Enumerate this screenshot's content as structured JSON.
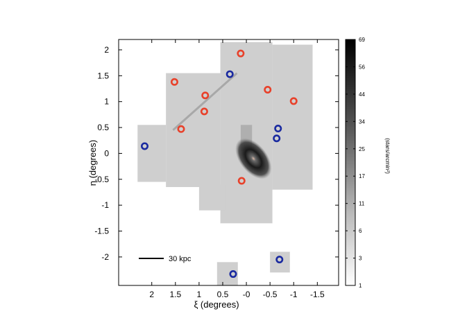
{
  "chart_data": {
    "type": "heatmap",
    "title": "",
    "xlabel": "ξ (degrees)",
    "ylabel": "η (degrees)",
    "xlim": [
      2.7,
      -1.95
    ],
    "ylim": [
      -2.55,
      2.2
    ],
    "x_axis_reversed": true,
    "x_ticks": [
      {
        "value": 2,
        "label": "2"
      },
      {
        "value": 1.5,
        "label": "1.5"
      },
      {
        "value": 1,
        "label": "1"
      },
      {
        "value": 0.5,
        "label": "0.5"
      },
      {
        "value": 0,
        "label": "-0"
      },
      {
        "value": -0.5,
        "label": "-0.5"
      },
      {
        "value": -1,
        "label": "-1"
      },
      {
        "value": -1.5,
        "label": "-1.5"
      }
    ],
    "y_ticks": [
      {
        "value": 2,
        "label": "2"
      },
      {
        "value": 1.5,
        "label": "1.5"
      },
      {
        "value": 1,
        "label": "1"
      },
      {
        "value": 0.5,
        "label": "0.5"
      },
      {
        "value": 0,
        "label": "0"
      },
      {
        "value": -0.5,
        "label": "-0.5"
      },
      {
        "value": -1,
        "label": "-1"
      },
      {
        "value": -1.5,
        "label": "-1.5"
      },
      {
        "value": -2,
        "label": "-2"
      }
    ],
    "colorbar": {
      "title": "(stars/arcmin²)",
      "tick_labels": [
        "69",
        "56",
        "44",
        "34",
        "25",
        "17",
        "11",
        "6",
        "3",
        "1"
      ],
      "colors": [
        "#000000",
        "#ffffff"
      ]
    },
    "scale_bar": {
      "label": "30 kpc"
    },
    "marker_colors": {
      "red": "#e8412a",
      "blue": "#1a2aa0"
    },
    "markers": [
      {
        "color": "red",
        "x": 0.12,
        "y": 1.93
      },
      {
        "color": "red",
        "x": 1.52,
        "y": 1.38
      },
      {
        "color": "red",
        "x": 0.87,
        "y": 1.12
      },
      {
        "color": "red",
        "x": -0.45,
        "y": 1.23
      },
      {
        "color": "red",
        "x": -1.0,
        "y": 1.01
      },
      {
        "color": "red",
        "x": 0.89,
        "y": 0.81
      },
      {
        "color": "red",
        "x": 1.38,
        "y": 0.47
      },
      {
        "color": "red",
        "x": 0.1,
        "y": -0.53
      },
      {
        "color": "blue",
        "x": 0.35,
        "y": 1.53
      },
      {
        "color": "blue",
        "x": -0.67,
        "y": 0.48
      },
      {
        "color": "blue",
        "x": -0.64,
        "y": 0.29
      },
      {
        "color": "blue",
        "x": 2.15,
        "y": 0.14
      },
      {
        "color": "blue",
        "x": -0.7,
        "y": -2.05
      },
      {
        "color": "blue",
        "x": 0.28,
        "y": -2.33
      }
    ],
    "survey_fields": [
      {
        "x0": 1.7,
        "x1": 0.55,
        "y0": -0.65,
        "y1": 1.55
      },
      {
        "x0": 0.55,
        "x1": -0.55,
        "y0": -1.35,
        "y1": 2.15
      },
      {
        "x0": -0.55,
        "x1": -1.4,
        "y0": -0.7,
        "y1": 2.1
      },
      {
        "x0": 2.3,
        "x1": 1.7,
        "y0": -0.55,
        "y1": 0.55
      },
      {
        "x0": 1.0,
        "x1": 0.45,
        "y0": -1.1,
        "y1": -0.6
      },
      {
        "x0": 0.62,
        "x1": 0.18,
        "y0": -2.55,
        "y1": -2.1
      },
      {
        "x0": -0.5,
        "x1": -0.92,
        "y0": -2.3,
        "y1": -1.9
      }
    ]
  }
}
